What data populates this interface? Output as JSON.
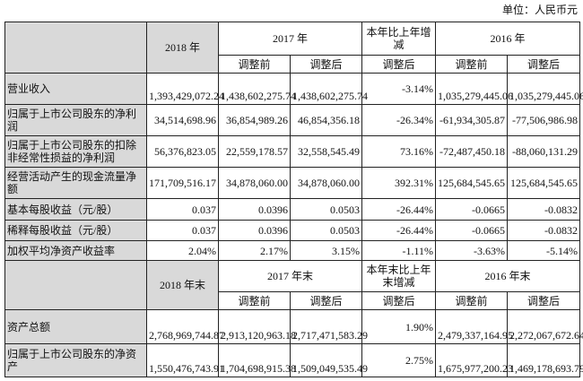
{
  "unit": "单位：人民币元",
  "header1": {
    "y2018": "2018 年",
    "y2017": "2017 年",
    "change": "本年比上年增减",
    "y2016": "2016 年",
    "before": "调整前",
    "after": "调整后"
  },
  "rows1": [
    {
      "label": "营业收入",
      "v": [
        "1,393,429,072.24",
        "1,438,602,275.74",
        "1,438,602,275.74",
        "-3.14%",
        "1,035,279,445.06",
        "1,035,279,445.06"
      ]
    },
    {
      "label": "归属于上市公司股东的净利润",
      "v": [
        "34,514,698.96",
        "36,854,989.26",
        "46,854,356.18",
        "-26.34%",
        "-61,934,305.87",
        "-77,506,986.98"
      ]
    },
    {
      "label": "归属于上市公司股东的扣除非经常性损益的净利润",
      "v": [
        "56,376,823.05",
        "22,559,178.57",
        "32,558,545.49",
        "73.16%",
        "-72,487,450.18",
        "-88,060,131.29"
      ]
    },
    {
      "label": "经营活动产生的现金流量净额",
      "v": [
        "171,709,516.17",
        "34,878,060.00",
        "34,878,060.00",
        "392.31%",
        "125,684,545.65",
        "125,684,545.65"
      ]
    },
    {
      "label": "基本每股收益（元/股）",
      "v": [
        "0.037",
        "0.0396",
        "0.0503",
        "-26.44%",
        "-0.0665",
        "-0.0832"
      ]
    },
    {
      "label": "稀释每股收益（元/股）",
      "v": [
        "0.037",
        "0.0396",
        "0.0503",
        "-26.44%",
        "-0.0665",
        "-0.0832"
      ]
    },
    {
      "label": "加权平均净资产收益率",
      "v": [
        "2.04%",
        "2.17%",
        "3.15%",
        "-1.11%",
        "-3.63%",
        "-5.14%"
      ]
    }
  ],
  "header2": {
    "y2018": "2018 年末",
    "y2017": "2017 年末",
    "change": "本年末比上年末增减",
    "y2016": "2016 年末",
    "before": "调整前",
    "after": "调整后"
  },
  "rows2": [
    {
      "label": "资产总额",
      "v": [
        "2,768,969,744.87",
        "2,913,120,963.18",
        "2,717,471,583.29",
        "1.90%",
        "2,479,337,164.95",
        "2,272,067,672.64"
      ]
    },
    {
      "label": "归属于上市公司股东的净资产",
      "v": [
        "1,550,476,743.91",
        "1,704,698,915.38",
        "1,509,049,535.49",
        "2.75%",
        "1,675,977,200.23",
        "1,469,178,693.79"
      ]
    }
  ]
}
